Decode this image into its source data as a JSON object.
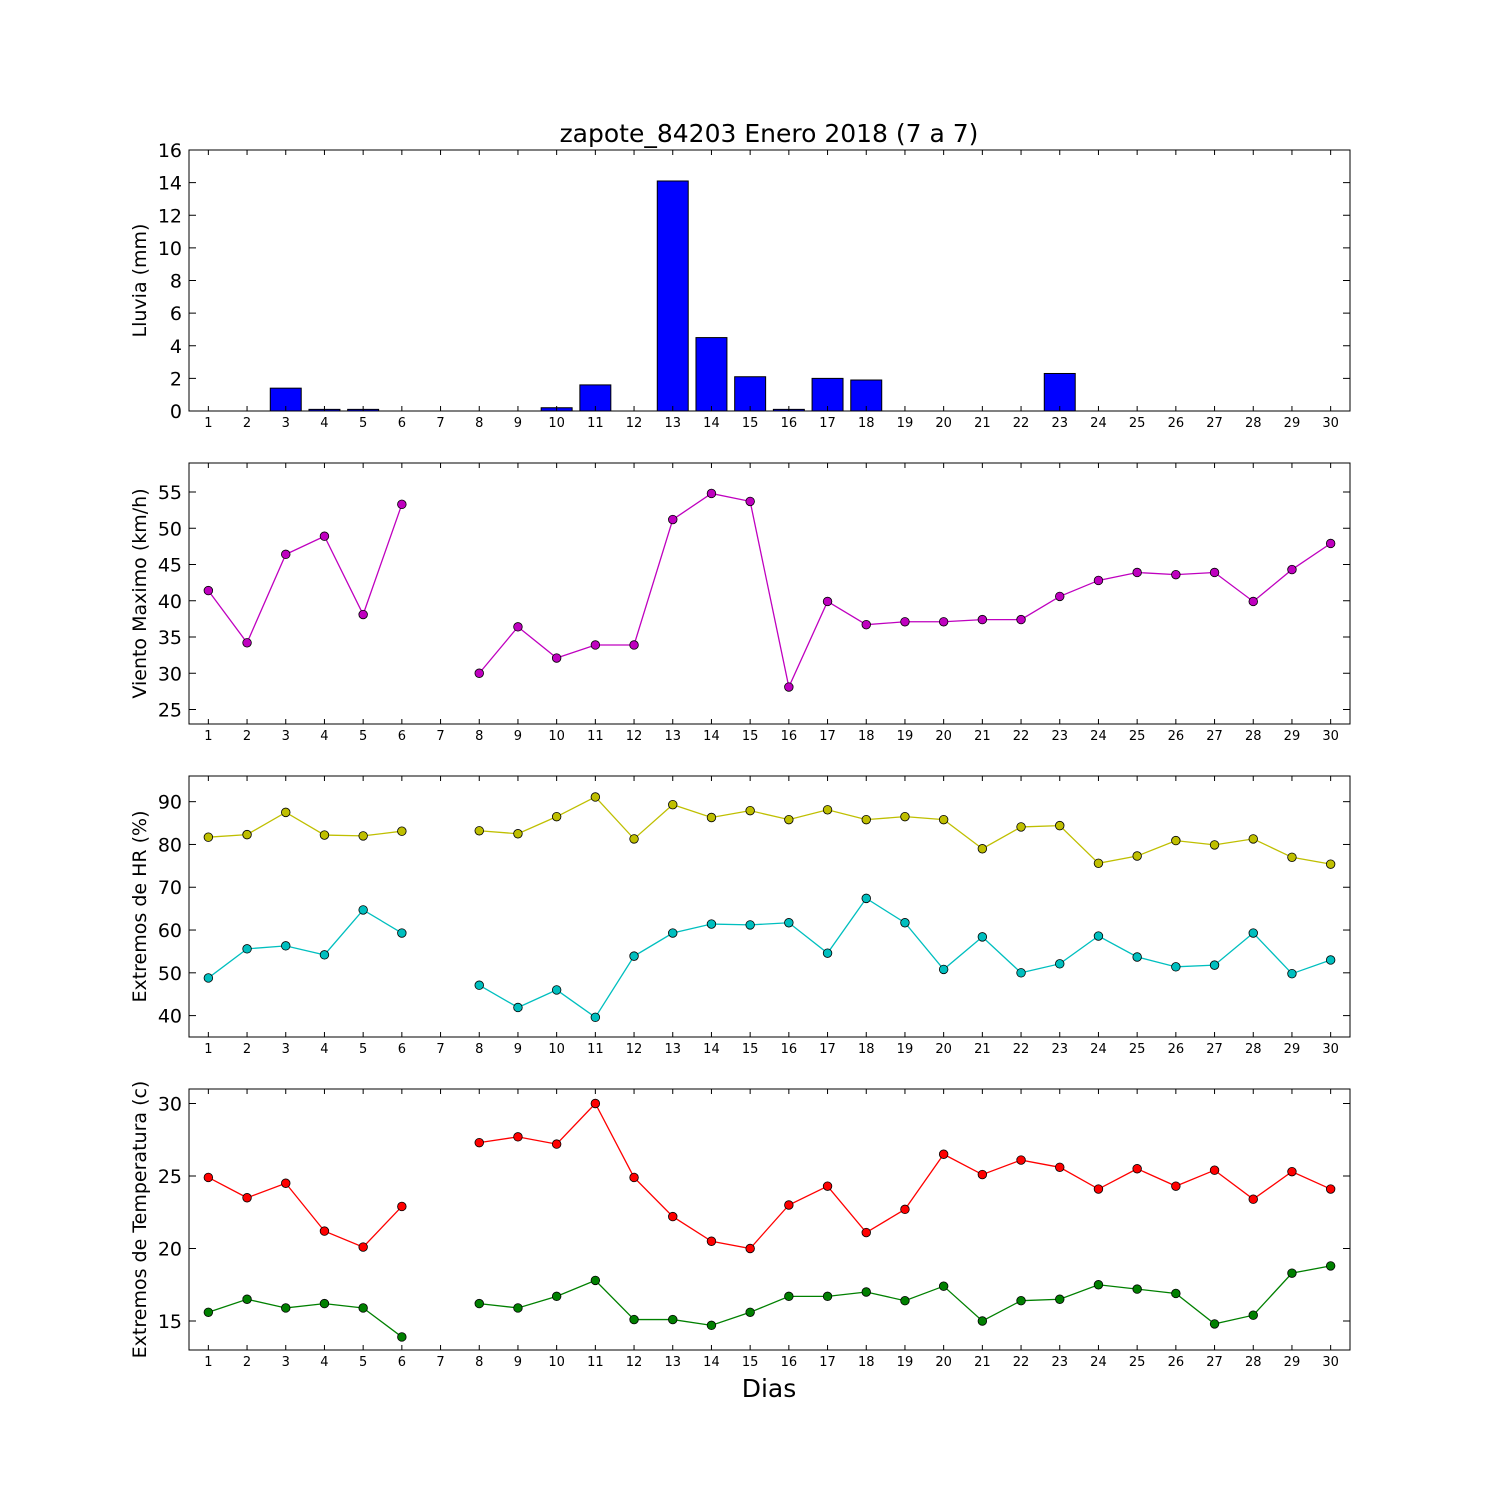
{
  "figure": {
    "title": "zapote_84203 Enero 2018  (7 a 7)",
    "xlabel": "Dias"
  },
  "chart_data": [
    {
      "type": "bar",
      "ylabel": "Lluvia (mm)",
      "x": [
        1,
        2,
        3,
        4,
        5,
        6,
        7,
        8,
        9,
        10,
        11,
        12,
        13,
        14,
        15,
        16,
        17,
        18,
        19,
        20,
        21,
        22,
        23,
        24,
        25,
        26,
        27,
        28,
        29,
        30
      ],
      "xlim": [
        0.5,
        30.5
      ],
      "ylim": [
        0,
        16
      ],
      "yticks": [
        0,
        2,
        4,
        6,
        8,
        10,
        12,
        14,
        16
      ],
      "values": [
        0,
        0,
        1.4,
        0.1,
        0.1,
        0,
        0,
        0,
        0,
        0.2,
        1.6,
        0,
        14.1,
        4.5,
        2.1,
        0.1,
        2.0,
        1.9,
        0,
        0,
        0,
        0,
        2.3,
        0,
        0,
        0,
        0,
        0,
        0,
        0
      ],
      "color": "#0000ff"
    },
    {
      "type": "line",
      "ylabel": "Viento Maximo (km/h)",
      "x": [
        1,
        2,
        3,
        4,
        5,
        6,
        7,
        8,
        9,
        10,
        11,
        12,
        13,
        14,
        15,
        16,
        17,
        18,
        19,
        20,
        21,
        22,
        23,
        24,
        25,
        26,
        27,
        28,
        29,
        30
      ],
      "xlim": [
        0.5,
        30.5
      ],
      "ylim": [
        23,
        59
      ],
      "yticks": [
        25,
        30,
        35,
        40,
        45,
        50,
        55
      ],
      "series": [
        {
          "color": "#bf00bf",
          "values": [
            41.4,
            34.2,
            46.4,
            48.9,
            38.1,
            53.3,
            null,
            30.0,
            36.4,
            32.1,
            33.9,
            33.9,
            51.2,
            54.8,
            53.7,
            28.1,
            39.9,
            36.7,
            37.1,
            37.1,
            37.4,
            37.4,
            40.6,
            42.8,
            43.9,
            43.6,
            43.9,
            39.9,
            44.3,
            47.9
          ]
        }
      ]
    },
    {
      "type": "line",
      "ylabel": "Extremos de HR (%)",
      "x": [
        1,
        2,
        3,
        4,
        5,
        6,
        7,
        8,
        9,
        10,
        11,
        12,
        13,
        14,
        15,
        16,
        17,
        18,
        19,
        20,
        21,
        22,
        23,
        24,
        25,
        26,
        27,
        28,
        29,
        30
      ],
      "xlim": [
        0.5,
        30.5
      ],
      "ylim": [
        35,
        96
      ],
      "yticks": [
        40,
        50,
        60,
        70,
        80,
        90
      ],
      "series": [
        {
          "color": "#bfbf00",
          "values": [
            81.7,
            82.3,
            87.5,
            82.2,
            82.0,
            83.1,
            null,
            83.2,
            82.5,
            86.5,
            91.1,
            81.3,
            89.3,
            86.3,
            87.9,
            85.8,
            88.1,
            85.8,
            86.5,
            85.8,
            79.0,
            84.1,
            84.4,
            75.6,
            77.3,
            80.9,
            79.9,
            81.3,
            77.0,
            75.4
          ]
        },
        {
          "color": "#00bfbf",
          "values": [
            48.8,
            55.6,
            56.3,
            54.2,
            64.7,
            59.3,
            null,
            47.1,
            41.9,
            46.0,
            39.6,
            53.9,
            59.3,
            61.4,
            61.2,
            61.7,
            54.6,
            67.4,
            61.7,
            50.8,
            58.4,
            50.0,
            52.1,
            58.6,
            53.7,
            51.4,
            51.8,
            59.3,
            49.8,
            53.0
          ]
        }
      ]
    },
    {
      "type": "line",
      "ylabel": "Extremos de Temperatura (c)",
      "x": [
        1,
        2,
        3,
        4,
        5,
        6,
        7,
        8,
        9,
        10,
        11,
        12,
        13,
        14,
        15,
        16,
        17,
        18,
        19,
        20,
        21,
        22,
        23,
        24,
        25,
        26,
        27,
        28,
        29,
        30
      ],
      "xlim": [
        0.5,
        30.5
      ],
      "ylim": [
        13,
        31
      ],
      "yticks": [
        15,
        20,
        25,
        30
      ],
      "series": [
        {
          "color": "#ff0000",
          "values": [
            24.9,
            23.5,
            24.5,
            21.2,
            20.1,
            22.9,
            null,
            27.3,
            27.7,
            27.2,
            30.0,
            24.9,
            22.2,
            20.5,
            20.0,
            23.0,
            24.3,
            21.1,
            22.7,
            26.5,
            25.1,
            26.1,
            25.6,
            24.1,
            25.5,
            24.3,
            25.4,
            23.4,
            25.3,
            24.1
          ]
        },
        {
          "color": "#008000",
          "values": [
            15.6,
            16.5,
            15.9,
            16.2,
            15.9,
            13.9,
            null,
            16.2,
            15.9,
            16.7,
            17.8,
            15.1,
            15.1,
            14.7,
            15.6,
            16.7,
            16.7,
            17.0,
            16.4,
            17.4,
            15.0,
            16.4,
            16.5,
            17.5,
            17.2,
            16.9,
            14.8,
            15.4,
            18.3,
            18.8
          ]
        }
      ]
    }
  ]
}
